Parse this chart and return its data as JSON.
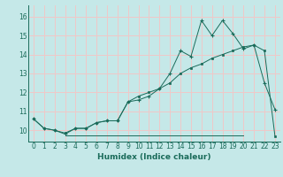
{
  "xlabel": "Humidex (Indice chaleur)",
  "background_color": "#c5e8e8",
  "grid_color": "#f0c8c8",
  "line_color": "#1a6b5a",
  "xlim": [
    -0.5,
    23.5
  ],
  "ylim": [
    9.4,
    16.6
  ],
  "yticks": [
    10,
    11,
    12,
    13,
    14,
    15,
    16
  ],
  "xticks": [
    0,
    1,
    2,
    3,
    4,
    5,
    6,
    7,
    8,
    9,
    10,
    11,
    12,
    13,
    14,
    15,
    16,
    17,
    18,
    19,
    20,
    21,
    22,
    23
  ],
  "series1_x": [
    0,
    1,
    2,
    3,
    4,
    5,
    6,
    7,
    8,
    9,
    10,
    11,
    12,
    13,
    14,
    15,
    16,
    17,
    18,
    19,
    20,
    21,
    22,
    23
  ],
  "series1_y": [
    10.6,
    10.1,
    10.0,
    9.8,
    10.1,
    10.1,
    10.4,
    10.5,
    10.5,
    11.5,
    11.6,
    11.8,
    12.2,
    13.0,
    14.2,
    13.9,
    15.8,
    15.0,
    15.8,
    15.1,
    14.3,
    14.5,
    12.5,
    11.1
  ],
  "series2_x": [
    0,
    1,
    2,
    3,
    4,
    5,
    6,
    7,
    8,
    9,
    10,
    11,
    12,
    13,
    14,
    15,
    16,
    17,
    18,
    19,
    20,
    21,
    22,
    23
  ],
  "series2_y": [
    10.6,
    10.1,
    10.0,
    9.85,
    10.1,
    10.1,
    10.4,
    10.5,
    10.5,
    11.5,
    11.8,
    12.0,
    12.2,
    12.5,
    13.0,
    13.3,
    13.5,
    13.8,
    14.0,
    14.2,
    14.4,
    14.5,
    14.2,
    9.7
  ],
  "series3_x": [
    3,
    4,
    5,
    6,
    7,
    8,
    9,
    10,
    11,
    12,
    13,
    14,
    15,
    16,
    17,
    18,
    19,
    20
  ],
  "series3_y": [
    9.75,
    9.75,
    9.75,
    9.75,
    9.75,
    9.75,
    9.75,
    9.75,
    9.75,
    9.75,
    9.75,
    9.75,
    9.75,
    9.75,
    9.75,
    9.75,
    9.75,
    9.75
  ]
}
